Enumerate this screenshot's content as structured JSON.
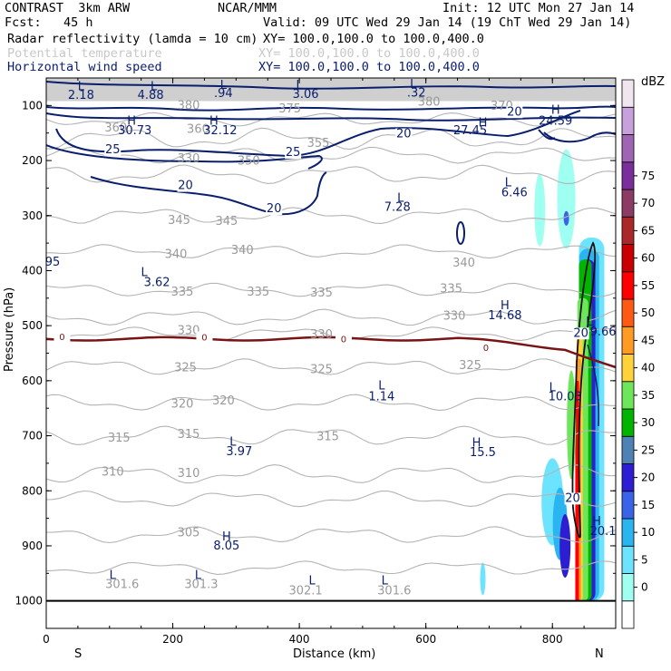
{
  "header": {
    "model_line": "CONTRAST  3km ARW",
    "center": "NCAR/MMM",
    "init": "Init: 12 UTC Mon 27 Jan 14",
    "fcst": "Fcst:   45 h",
    "valid": "Valid: 09 UTC Wed 29 Jan 14 (19 ChT Wed 29 Jan 14)",
    "fields": [
      {
        "label": "Radar reflectivity (lamda = 10 cm)",
        "xy": "XY= 100.0,100.0 to 100.0,400.0",
        "color": "#000000"
      },
      {
        "label": "Potential temperature",
        "xy": "XY= 100.0,100.0 to 100.0,400.0",
        "color": "#c8c8c8"
      },
      {
        "label": "Horizontal wind speed",
        "xy": "XY= 100.0,100.0 to 100.0,400.0",
        "color": "#0a1e6e"
      }
    ]
  },
  "chart_data": {
    "type": "cross-section",
    "xlabel": "Distance (km)",
    "ylabel": "Pressure (hPa)",
    "xlim": [
      0,
      900
    ],
    "ylim": [
      1050,
      50
    ],
    "x_ticks": [
      "0",
      "200",
      "400",
      "600",
      "800"
    ],
    "x_tick_values": [
      0,
      200,
      400,
      600,
      800
    ],
    "y_ticks": [
      "100",
      "200",
      "300",
      "400",
      "500",
      "600",
      "700",
      "800",
      "900",
      "1000"
    ],
    "y_tick_values": [
      100,
      200,
      300,
      400,
      500,
      600,
      700,
      800,
      900,
      1000
    ],
    "end_labels": {
      "left": "S",
      "right": "N"
    },
    "colorbar": {
      "unit": "dBZ",
      "levels": [
        "0",
        "5",
        "10",
        "15",
        "20",
        "25",
        "30",
        "35",
        "40",
        "45",
        "50",
        "55",
        "60",
        "65",
        "70",
        "75"
      ],
      "colors": [
        "#ffffff",
        "#9ffff0",
        "#6de4ff",
        "#2ab4f0",
        "#3a64e8",
        "#2e1ed2",
        "#4f82b4",
        "#00b400",
        "#6ee65a",
        "#ffd23c",
        "#ff9a22",
        "#ff5a14",
        "#ff0000",
        "#c80000",
        "#aa2828",
        "#8c3c64",
        "#7a2e9c",
        "#a064b4",
        "#c8a0dc",
        "#f0e6f0"
      ]
    },
    "theta_labels": [
      {
        "v": "380",
        "x": 225,
        "p": 107
      },
      {
        "v": "375",
        "x": 385,
        "p": 113
      },
      {
        "v": "380",
        "x": 605,
        "p": 100
      },
      {
        "v": "370",
        "x": 720,
        "p": 108
      },
      {
        "v": "360",
        "x": 110,
        "p": 147
      },
      {
        "v": "360",
        "x": 240,
        "p": 150
      },
      {
        "v": "355",
        "x": 430,
        "p": 175
      },
      {
        "v": "350",
        "x": 320,
        "p": 207
      },
      {
        "v": "330",
        "x": 225,
        "p": 203
      },
      {
        "v": "345",
        "x": 210,
        "p": 315
      },
      {
        "v": "345",
        "x": 285,
        "p": 317
      },
      {
        "v": "340",
        "x": 205,
        "p": 377
      },
      {
        "v": "340",
        "x": 310,
        "p": 370
      },
      {
        "v": "340",
        "x": 660,
        "p": 393
      },
      {
        "v": "335",
        "x": 215,
        "p": 445
      },
      {
        "v": "335",
        "x": 335,
        "p": 445
      },
      {
        "v": "335",
        "x": 435,
        "p": 447
      },
      {
        "v": "335",
        "x": 640,
        "p": 440
      },
      {
        "v": "330",
        "x": 225,
        "p": 515
      },
      {
        "v": "330",
        "x": 435,
        "p": 523
      },
      {
        "v": "330",
        "x": 645,
        "p": 489
      },
      {
        "v": "325",
        "x": 220,
        "p": 583
      },
      {
        "v": "325",
        "x": 435,
        "p": 586
      },
      {
        "v": "325",
        "x": 670,
        "p": 579
      },
      {
        "v": "320",
        "x": 215,
        "p": 649
      },
      {
        "v": "320",
        "x": 280,
        "p": 643
      },
      {
        "v": "315",
        "x": 115,
        "p": 711
      },
      {
        "v": "315",
        "x": 225,
        "p": 704
      },
      {
        "v": "315",
        "x": 445,
        "p": 708
      },
      {
        "v": "310",
        "x": 105,
        "p": 772
      },
      {
        "v": "310",
        "x": 225,
        "p": 775
      },
      {
        "v": "305",
        "x": 225,
        "p": 883
      }
    ],
    "wind_labels": [
      {
        "v": "25",
        "x": 105,
        "p": 187
      },
      {
        "v": "20",
        "x": 220,
        "p": 252
      },
      {
        "v": "25",
        "x": 390,
        "p": 192
      },
      {
        "v": "20",
        "x": 360,
        "p": 294
      },
      {
        "v": "20",
        "x": 565,
        "p": 158
      },
      {
        "v": "20",
        "x": 740,
        "p": 118
      },
      {
        "v": "20",
        "x": 832,
        "p": 820
      },
      {
        "v": "20",
        "x": 845,
        "p": 520
      }
    ],
    "hl_labels": [
      {
        "t": "L",
        "x": 55,
        "p": 72
      },
      {
        "t": "L",
        "x": 170,
        "p": 72
      },
      {
        "t": "L",
        "x": 280,
        "p": 70
      },
      {
        "t": "L",
        "x": 400,
        "p": 70
      },
      {
        "t": "L",
        "x": 580,
        "p": 68
      },
      {
        "t": "H",
        "x": 135,
        "p": 135
      },
      {
        "t": "H",
        "x": 265,
        "p": 135
      },
      {
        "t": "H",
        "x": 690,
        "p": 138
      },
      {
        "t": "H",
        "x": 805,
        "p": 115
      },
      {
        "t": "L",
        "x": 560,
        "p": 275
      },
      {
        "t": "L",
        "x": 730,
        "p": 247
      },
      {
        "t": "L",
        "x": 155,
        "p": 410
      },
      {
        "t": "H",
        "x": 725,
        "p": 470
      },
      {
        "t": "L",
        "x": 530,
        "p": 616
      },
      {
        "t": "L",
        "x": 800,
        "p": 619
      },
      {
        "t": "L",
        "x": 858,
        "p": 500
      },
      {
        "t": "L",
        "x": 295,
        "p": 718
      },
      {
        "t": "H",
        "x": 680,
        "p": 720
      },
      {
        "t": "H",
        "x": 285,
        "p": 890
      },
      {
        "t": "H",
        "x": 870,
        "p": 862
      },
      {
        "t": "L",
        "x": 105,
        "p": 960
      },
      {
        "t": "L",
        "x": 240,
        "p": 960
      },
      {
        "t": "L",
        "x": 420,
        "p": 970
      },
      {
        "t": "L",
        "x": 535,
        "p": 970
      }
    ],
    "wind_values": [
      {
        "v": "2.18",
        "x": 55,
        "p": 88
      },
      {
        "v": "4.88",
        "x": 165,
        "p": 88
      },
      {
        "v": ".94",
        "x": 280,
        "p": 85
      },
      {
        "v": "3.06",
        "x": 410,
        "p": 86
      },
      {
        "v": ".32",
        "x": 585,
        "p": 84
      },
      {
        "v": "30.73",
        "x": 140,
        "p": 152
      },
      {
        "v": "32.12",
        "x": 275,
        "p": 152
      },
      {
        "v": "27.45",
        "x": 670,
        "p": 152
      },
      {
        "v": "24.59",
        "x": 805,
        "p": 135
      },
      {
        "v": "7.28",
        "x": 555,
        "p": 291
      },
      {
        "v": "6.46",
        "x": 740,
        "p": 265
      },
      {
        "v": "95",
        "x": 10,
        "p": 391
      },
      {
        "v": "3.62",
        "x": 175,
        "p": 428
      },
      {
        "v": "14.68",
        "x": 725,
        "p": 488
      },
      {
        "v": "9.66",
        "x": 880,
        "p": 518
      },
      {
        "v": "1.14",
        "x": 530,
        "p": 636
      },
      {
        "v": "10.03",
        "x": 820,
        "p": 636
      },
      {
        "v": "3.97",
        "x": 305,
        "p": 735
      },
      {
        "v": "15.5",
        "x": 690,
        "p": 737
      },
      {
        "v": "8.05",
        "x": 285,
        "p": 907
      },
      {
        "v": "20.1",
        "x": 880,
        "p": 880
      }
    ],
    "theta_values": [
      {
        "v": "301.6",
        "x": 120,
        "p": 977
      },
      {
        "v": "301.3",
        "x": 245,
        "p": 977
      },
      {
        "v": "302.1",
        "x": 410,
        "p": 988
      },
      {
        "v": "301.6",
        "x": 550,
        "p": 988
      }
    ],
    "zero_line_labels": [
      {
        "v": "0",
        "x": 25,
        "p": 526
      },
      {
        "v": "0",
        "x": 250,
        "p": 527
      },
      {
        "v": "0",
        "x": 470,
        "p": 530
      },
      {
        "v": "0",
        "x": 695,
        "p": 546
      }
    ]
  }
}
